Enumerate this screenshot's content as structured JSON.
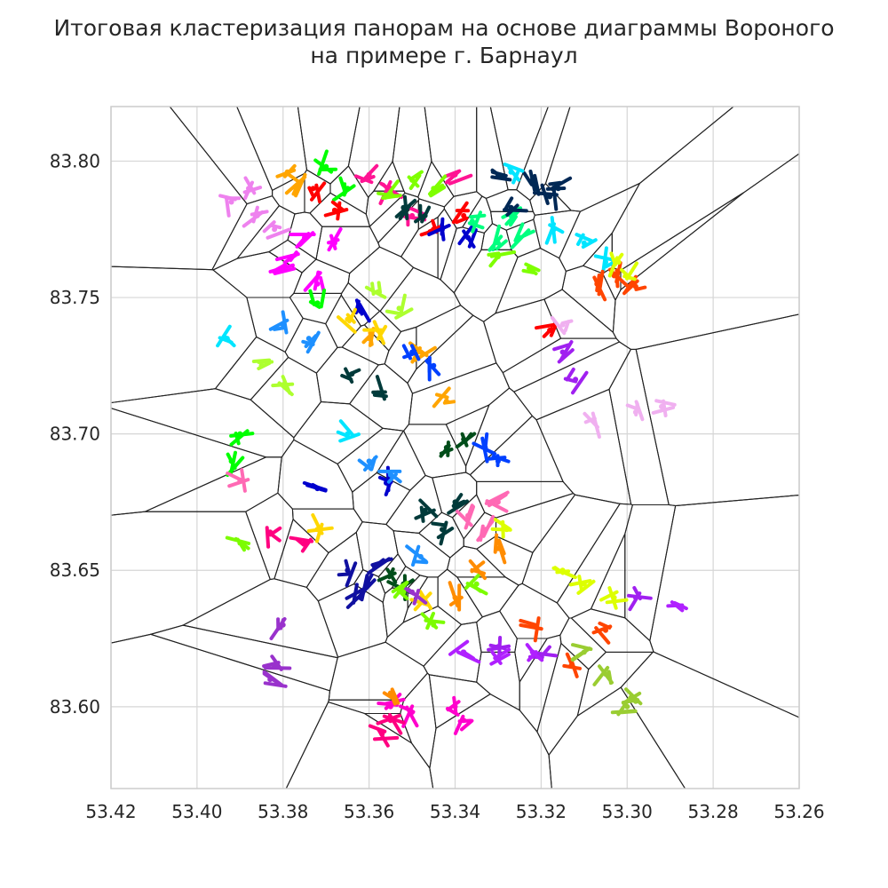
{
  "chart_data": {
    "type": "scatter",
    "title_line1": "Итоговая кластеризация панорам на основе диаграммы Вороного",
    "title_line2": "на примере г. Барнаул",
    "xlabel": "",
    "ylabel": "",
    "xlim": [
      53.42,
      53.26
    ],
    "ylim": [
      83.57,
      83.82
    ],
    "x_ticks": [
      "53.42",
      "53.40",
      "53.38",
      "53.36",
      "53.34",
      "53.32",
      "53.30",
      "53.28",
      "53.26"
    ],
    "x_tick_values": [
      53.42,
      53.4,
      53.38,
      53.36,
      53.34,
      53.32,
      53.3,
      53.28,
      53.26
    ],
    "y_ticks": [
      "83.80",
      "83.75",
      "83.70",
      "83.65",
      "83.60"
    ],
    "y_tick_values": [
      83.8,
      83.75,
      83.7,
      83.65,
      83.6
    ],
    "grid": true,
    "voronoi_edge_color": "#222222",
    "clusters": [
      {
        "color": "#ff00ff",
        "points": [
          [
            53.375,
            83.772
          ],
          [
            53.378,
            83.765
          ],
          [
            53.38,
            83.76
          ],
          [
            53.372,
            83.755
          ],
          [
            53.368,
            83.77
          ]
        ]
      },
      {
        "color": "#ee82ee",
        "points": [
          [
            53.388,
            83.79
          ],
          [
            53.386,
            83.78
          ],
          [
            53.392,
            83.785
          ],
          [
            53.382,
            83.775
          ]
        ]
      },
      {
        "color": "#ff1493",
        "points": [
          [
            53.36,
            83.795
          ],
          [
            53.355,
            83.79
          ],
          [
            53.35,
            83.78
          ],
          [
            53.34,
            83.795
          ]
        ]
      },
      {
        "color": "#ffa500",
        "points": [
          [
            53.379,
            83.796
          ],
          [
            53.377,
            83.79
          ],
          [
            53.36,
            83.735
          ],
          [
            53.348,
            83.73
          ],
          [
            53.342,
            83.712
          ]
        ]
      },
      {
        "color": "#00ff00",
        "points": [
          [
            53.37,
            83.798
          ],
          [
            53.365,
            83.79
          ],
          [
            53.372,
            83.748
          ],
          [
            53.39,
            83.7
          ],
          [
            53.392,
            83.69
          ]
        ]
      },
      {
        "color": "#ff0000",
        "points": [
          [
            53.373,
            83.79
          ],
          [
            53.368,
            83.782
          ],
          [
            53.345,
            83.775
          ],
          [
            53.338,
            83.78
          ],
          [
            53.318,
            83.738
          ]
        ]
      },
      {
        "color": "#7fff00",
        "points": [
          [
            53.355,
            83.788
          ],
          [
            53.35,
            83.793
          ],
          [
            53.345,
            83.79
          ],
          [
            53.33,
            83.765
          ],
          [
            53.322,
            83.76
          ]
        ]
      },
      {
        "color": "#003a3a",
        "points": [
          [
            53.352,
            83.783
          ],
          [
            53.347,
            83.78
          ],
          [
            53.364,
            83.722
          ],
          [
            53.358,
            83.715
          ],
          [
            53.347,
            83.672
          ],
          [
            53.34,
            83.675
          ],
          [
            53.343,
            83.665
          ]
        ]
      },
      {
        "color": "#0000cd",
        "points": [
          [
            53.343,
            83.775
          ],
          [
            53.337,
            83.772
          ],
          [
            53.362,
            83.745
          ],
          [
            53.372,
            83.68
          ],
          [
            53.356,
            83.682
          ]
        ]
      },
      {
        "color": "#00ff7f",
        "points": [
          [
            53.336,
            83.778
          ],
          [
            53.33,
            83.77
          ],
          [
            53.327,
            83.78
          ],
          [
            53.325,
            83.772
          ]
        ]
      },
      {
        "color": "#002855",
        "points": [
          [
            53.33,
            83.795
          ],
          [
            53.322,
            83.793
          ],
          [
            53.318,
            83.787
          ],
          [
            53.327,
            83.783
          ],
          [
            53.316,
            83.79
          ]
        ]
      },
      {
        "color": "#00e5ff",
        "points": [
          [
            53.327,
            83.796
          ],
          [
            53.317,
            83.775
          ],
          [
            53.31,
            83.77
          ],
          [
            53.305,
            83.763
          ],
          [
            53.365,
            83.7
          ],
          [
            53.393,
            83.735
          ]
        ]
      },
      {
        "color": "#ff4500",
        "points": [
          [
            53.307,
            83.755
          ],
          [
            53.303,
            83.758
          ],
          [
            53.298,
            83.754
          ],
          [
            53.322,
            83.63
          ],
          [
            53.313,
            83.615
          ],
          [
            53.305,
            83.628
          ]
        ]
      },
      {
        "color": "#ddff00",
        "points": [
          [
            53.302,
            83.763
          ],
          [
            53.3,
            83.758
          ],
          [
            53.315,
            83.65
          ],
          [
            53.31,
            83.645
          ],
          [
            53.303,
            83.64
          ],
          [
            53.328,
            83.665
          ]
        ]
      },
      {
        "color": "#a020f0",
        "points": [
          [
            53.315,
            83.73
          ],
          [
            53.312,
            83.72
          ],
          [
            53.33,
            83.622
          ],
          [
            53.32,
            83.618
          ],
          [
            53.298,
            83.64
          ]
        ]
      },
      {
        "color": "#f0b0f0",
        "points": [
          [
            53.315,
            83.74
          ],
          [
            53.308,
            83.705
          ],
          [
            53.298,
            83.708
          ],
          [
            53.292,
            83.71
          ]
        ]
      },
      {
        "color": "#1e90ff",
        "points": [
          [
            53.38,
            83.74
          ],
          [
            53.374,
            83.735
          ],
          [
            53.36,
            83.69
          ],
          [
            53.355,
            83.685
          ],
          [
            53.348,
            83.655
          ]
        ]
      },
      {
        "color": "#ffd700",
        "points": [
          [
            53.365,
            83.742
          ],
          [
            53.358,
            83.738
          ],
          [
            53.372,
            83.665
          ],
          [
            53.348,
            83.64
          ]
        ]
      },
      {
        "color": "#adff2f",
        "points": [
          [
            53.358,
            83.752
          ],
          [
            53.353,
            83.746
          ],
          [
            53.385,
            83.725
          ],
          [
            53.38,
            83.718
          ]
        ]
      },
      {
        "color": "#0040ff",
        "points": [
          [
            53.35,
            83.73
          ],
          [
            53.345,
            83.725
          ],
          [
            53.333,
            83.695
          ],
          [
            53.33,
            83.69
          ]
        ]
      },
      {
        "color": "#1010a0",
        "points": [
          [
            53.365,
            83.65
          ],
          [
            53.36,
            83.645
          ],
          [
            53.358,
            83.652
          ],
          [
            53.362,
            83.64
          ]
        ]
      },
      {
        "color": "#004d1a",
        "points": [
          [
            53.355,
            83.648
          ],
          [
            53.352,
            83.645
          ],
          [
            53.338,
            83.698
          ],
          [
            53.342,
            83.695
          ]
        ]
      },
      {
        "color": "#9932cc",
        "points": [
          [
            53.35,
            83.642
          ],
          [
            53.38,
            83.63
          ],
          [
            53.382,
            83.615
          ],
          [
            53.383,
            83.61
          ]
        ]
      },
      {
        "color": "#ff00cc",
        "points": [
          [
            53.355,
            83.6
          ],
          [
            53.35,
            83.598
          ],
          [
            53.34,
            83.6
          ],
          [
            53.338,
            83.595
          ]
        ]
      },
      {
        "color": "#ff0080",
        "points": [
          [
            53.355,
            83.595
          ],
          [
            53.357,
            83.59
          ],
          [
            53.383,
            83.664
          ],
          [
            53.375,
            83.66
          ]
        ]
      },
      {
        "color": "#7cfc00",
        "points": [
          [
            53.352,
            83.642
          ],
          [
            53.345,
            83.63
          ],
          [
            53.335,
            83.645
          ],
          [
            53.39,
            83.66
          ]
        ]
      },
      {
        "color": "#b020ff",
        "points": [
          [
            53.338,
            83.62
          ],
          [
            53.33,
            83.618
          ],
          [
            53.322,
            83.62
          ],
          [
            53.288,
            83.637
          ]
        ]
      },
      {
        "color": "#9acd32",
        "points": [
          [
            53.31,
            83.62
          ],
          [
            53.305,
            83.612
          ],
          [
            53.3,
            83.6
          ],
          [
            53.298,
            83.602
          ]
        ]
      },
      {
        "color": "#ff8c00",
        "points": [
          [
            53.33,
            83.658
          ],
          [
            53.335,
            83.65
          ],
          [
            53.34,
            83.64
          ],
          [
            53.355,
            83.605
          ]
        ]
      },
      {
        "color": "#ff69b4",
        "points": [
          [
            53.337,
            83.67
          ],
          [
            53.333,
            83.665
          ],
          [
            53.33,
            83.675
          ],
          [
            53.39,
            83.683
          ]
        ]
      }
    ]
  }
}
